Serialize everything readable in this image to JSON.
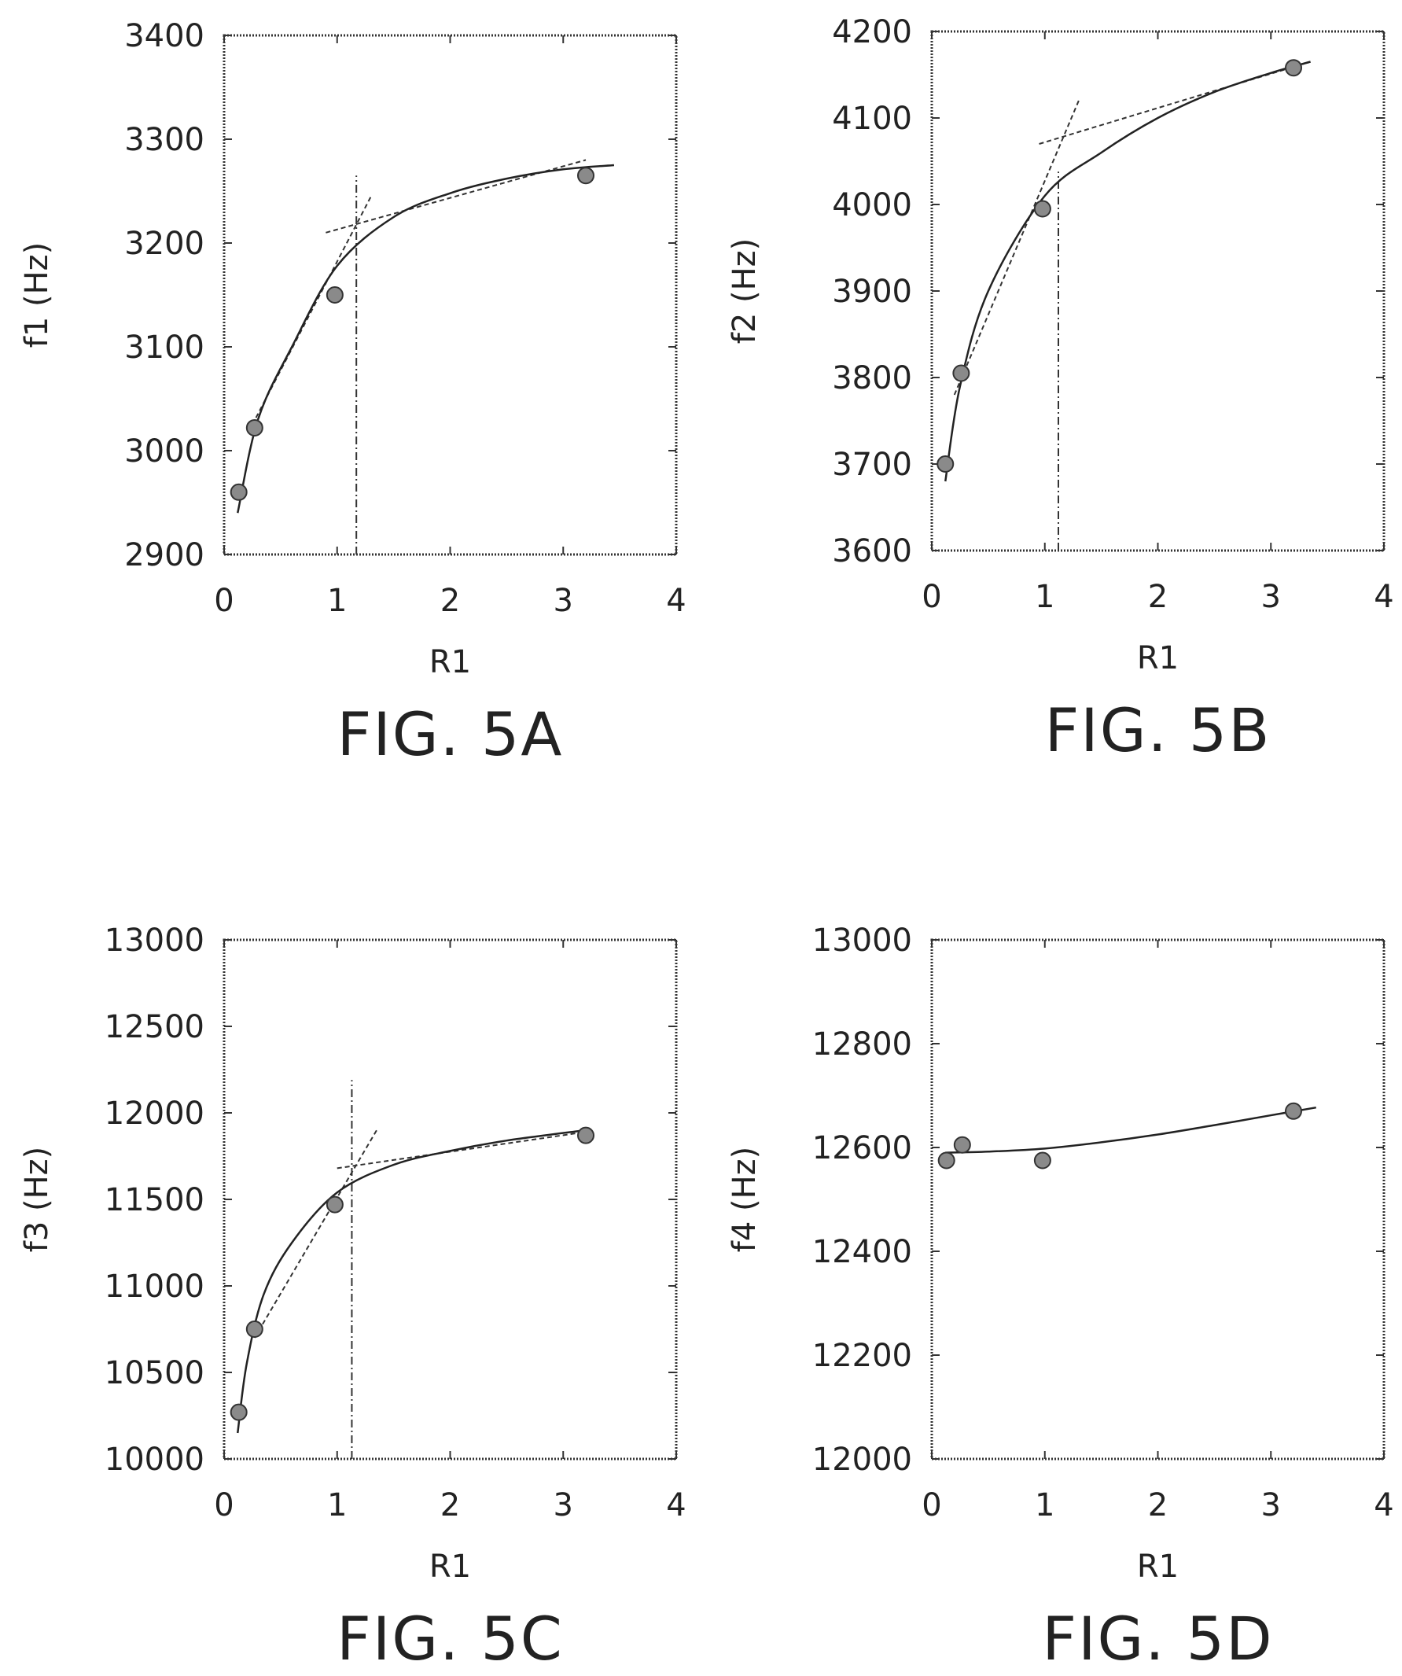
{
  "chart_data": [
    {
      "type": "scatter",
      "figure_label": "FIG. 5A",
      "xlabel": "R1",
      "ylabel": "f1 (Hz)",
      "xlim": [
        0,
        4
      ],
      "ylim": [
        2900,
        3400
      ],
      "x_ticks": [
        "0",
        "1",
        "2",
        "3",
        "4"
      ],
      "y_ticks": [
        "2900",
        "3000",
        "3100",
        "3200",
        "3300",
        "3400"
      ],
      "grid": false,
      "series": [
        {
          "x": [
            0.13,
            0.27,
            0.98,
            3.2
          ],
          "y": [
            2960,
            3022,
            3150,
            3265
          ]
        }
      ],
      "fit_curve": {
        "x": [
          0.12,
          0.3,
          0.6,
          1.0,
          1.5,
          2.0,
          2.5,
          3.0,
          3.45
        ],
        "y": [
          2940,
          3030,
          3100,
          3178,
          3225,
          3248,
          3262,
          3271,
          3275
        ]
      },
      "asymptote_lines": [
        {
          "x": [
            0.25,
            1.3
          ],
          "y": [
            3025,
            3245
          ]
        },
        {
          "x": [
            0.9,
            3.2
          ],
          "y": [
            3210,
            3280
          ]
        }
      ],
      "crossover_x": 1.17
    },
    {
      "type": "scatter",
      "figure_label": "FIG. 5B",
      "xlabel": "R1",
      "ylabel": "f2 (Hz)",
      "xlim": [
        0,
        4
      ],
      "ylim": [
        3600,
        4200
      ],
      "x_ticks": [
        "0",
        "1",
        "2",
        "3",
        "4"
      ],
      "y_ticks": [
        "3600",
        "3700",
        "3800",
        "3900",
        "4000",
        "4100",
        "4200"
      ],
      "grid": false,
      "series": [
        {
          "x": [
            0.12,
            0.26,
            0.98,
            3.2
          ],
          "y": [
            3700,
            3805,
            3995,
            4158
          ]
        }
      ],
      "fit_curve": {
        "x": [
          0.12,
          0.25,
          0.5,
          1.0,
          1.5,
          2.0,
          2.5,
          3.0,
          3.35
        ],
        "y": [
          3680,
          3790,
          3900,
          4010,
          4060,
          4100,
          4130,
          4152,
          4165
        ]
      },
      "asymptote_lines": [
        {
          "x": [
            0.2,
            1.3
          ],
          "y": [
            3780,
            4120
          ]
        },
        {
          "x": [
            0.95,
            3.35
          ],
          "y": [
            4070,
            4165
          ]
        }
      ],
      "crossover_x": 1.12
    },
    {
      "type": "scatter",
      "figure_label": "FIG. 5C",
      "xlabel": "R1",
      "ylabel": "f3 (Hz)",
      "xlim": [
        0,
        4
      ],
      "ylim": [
        10000,
        13000
      ],
      "x_ticks": [
        "0",
        "1",
        "2",
        "3",
        "4"
      ],
      "y_ticks": [
        "10000",
        "10500",
        "11000",
        "11500",
        "12000",
        "12500",
        "13000"
      ],
      "grid": false,
      "series": [
        {
          "x": [
            0.13,
            0.27,
            0.98,
            3.2
          ],
          "y": [
            10270,
            10750,
            11470,
            11870
          ]
        }
      ],
      "fit_curve": {
        "x": [
          0.12,
          0.2,
          0.35,
          0.6,
          1.0,
          1.5,
          2.0,
          2.5,
          3.2
        ],
        "y": [
          10150,
          10550,
          10950,
          11250,
          11540,
          11700,
          11780,
          11840,
          11900
        ]
      },
      "asymptote_lines": [
        {
          "x": [
            0.27,
            1.35
          ],
          "y": [
            10700,
            11900
          ]
        },
        {
          "x": [
            1.0,
            3.2
          ],
          "y": [
            11680,
            11890
          ]
        }
      ],
      "crossover_x": 1.13
    },
    {
      "type": "scatter",
      "figure_label": "FIG. 5D",
      "xlabel": "R1",
      "ylabel": "f4 (Hz)",
      "xlim": [
        0,
        4
      ],
      "ylim": [
        12000,
        13000
      ],
      "x_ticks": [
        "0",
        "1",
        "2",
        "3",
        "4"
      ],
      "y_ticks": [
        "12000",
        "12200",
        "12400",
        "12600",
        "12800",
        "13000"
      ],
      "grid": false,
      "series": [
        {
          "x": [
            0.13,
            0.27,
            0.98,
            3.2
          ],
          "y": [
            12575,
            12605,
            12575,
            12670
          ]
        }
      ],
      "fit_curve": {
        "x": [
          0.12,
          0.5,
          1.0,
          1.5,
          2.0,
          2.5,
          3.0,
          3.4
        ],
        "y": [
          12590,
          12592,
          12598,
          12610,
          12625,
          12643,
          12662,
          12677
        ]
      },
      "asymptote_lines": [],
      "crossover_x": null
    }
  ]
}
